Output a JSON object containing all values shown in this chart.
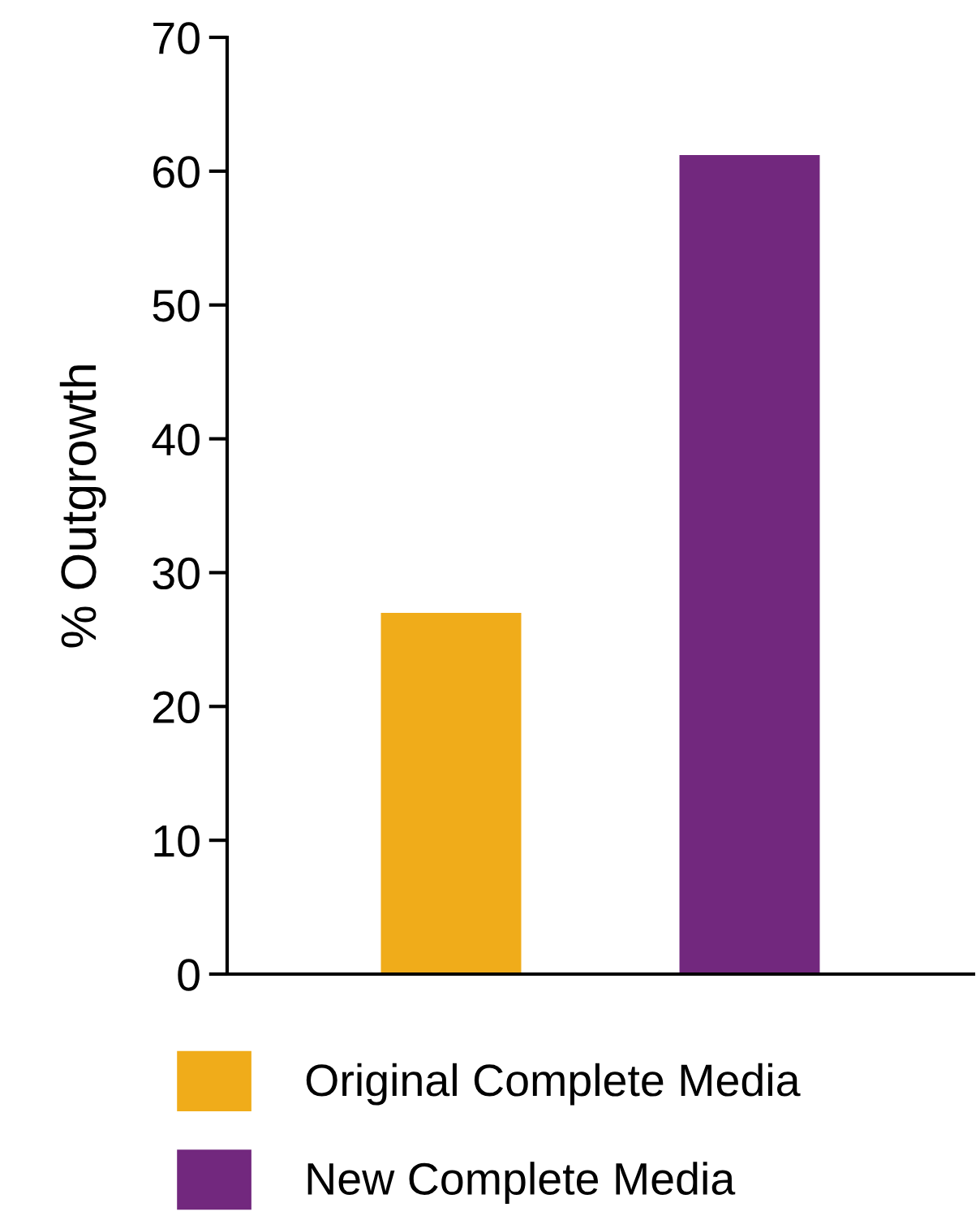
{
  "chart_data": {
    "type": "bar",
    "ylabel": "% Outgrowth",
    "categories": [
      null,
      null
    ],
    "series": [
      {
        "name": "Original Complete Media",
        "color": "#f0ac1a",
        "values": [
          27,
          null
        ]
      },
      {
        "name": "New Complete Media",
        "color": "#72287e",
        "values": [
          null,
          61.2
        ]
      }
    ],
    "ylim": [
      0,
      70
    ],
    "yticks": [
      0,
      10,
      20,
      30,
      40,
      50,
      60,
      70
    ],
    "grid": false,
    "legend": "bottom"
  }
}
